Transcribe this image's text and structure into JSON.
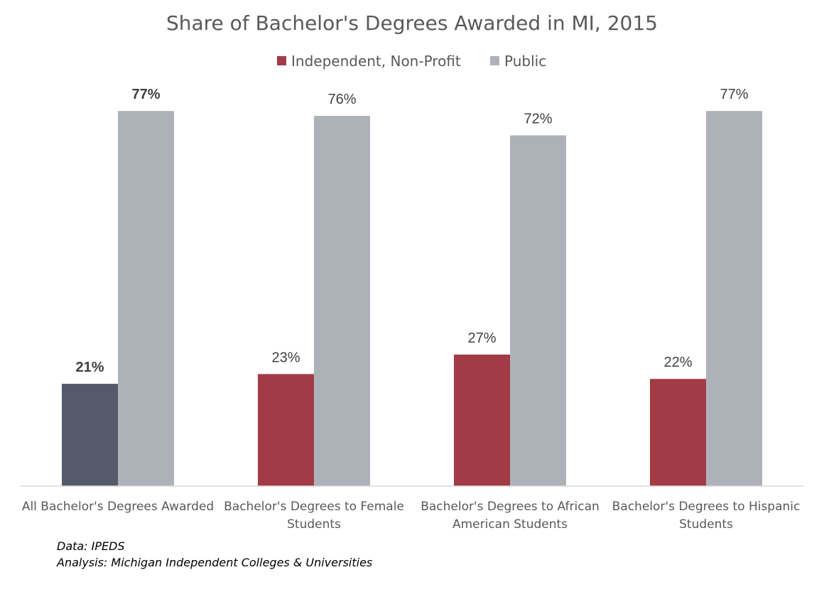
{
  "chart_data": {
    "type": "bar",
    "title": "Share of Bachelor's Degrees Awarded in MI, 2015",
    "categories": [
      [
        "All Bachelor's Degrees Awarded"
      ],
      [
        "Bachelor's Degrees to Female",
        "Students"
      ],
      [
        "Bachelor's Degrees to African",
        "American Students"
      ],
      [
        "Bachelor's Degrees to Hispanic",
        "Students"
      ]
    ],
    "series": [
      {
        "name": "Independent, Non-Profit",
        "color": "#A23B46",
        "values": [
          21,
          23,
          27,
          22
        ],
        "labels": [
          "21%",
          "23%",
          "27%",
          "22%"
        ],
        "point_colors": [
          "#545A6A",
          "#A23B46",
          "#A23B46",
          "#A23B46"
        ]
      },
      {
        "name": "Public",
        "color": "#ADB2B8",
        "values": [
          77,
          76,
          72,
          77
        ],
        "labels": [
          "77%",
          "76%",
          "72%",
          "77%"
        ]
      }
    ],
    "bold_labels_category_index": 0,
    "ylim": [
      0,
      100
    ],
    "gridlines": false,
    "legend_position": "top",
    "xlabel": "",
    "ylabel": ""
  },
  "notes": {
    "data_source": "Data: IPEDS",
    "analysis": "Analysis: Michigan Independent Colleges & Universities"
  }
}
